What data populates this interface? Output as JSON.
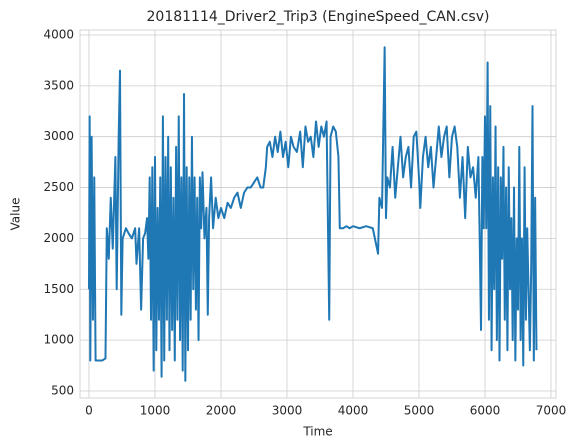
{
  "chart_data": {
    "type": "line",
    "title": "20181114_Driver2_Trip3 (EngineSpeed_CAN.csv)",
    "xlabel": "Time",
    "ylabel": "Value",
    "x": [
      0,
      10,
      20,
      40,
      60,
      80,
      100,
      150,
      200,
      250,
      270,
      300,
      330,
      360,
      400,
      420,
      450,
      470,
      490,
      510,
      560,
      600,
      650,
      700,
      720,
      760,
      790,
      820,
      850,
      880,
      900,
      920,
      940,
      960,
      980,
      1000,
      1020,
      1040,
      1060,
      1080,
      1100,
      1120,
      1140,
      1160,
      1180,
      1200,
      1220,
      1240,
      1260,
      1280,
      1300,
      1320,
      1340,
      1360,
      1380,
      1400,
      1420,
      1440,
      1460,
      1480,
      1500,
      1520,
      1540,
      1560,
      1580,
      1600,
      1620,
      1640,
      1660,
      1680,
      1700,
      1720,
      1750,
      1780,
      1800,
      1820,
      1850,
      1880,
      1920,
      1960,
      2000,
      2050,
      2100,
      2150,
      2200,
      2250,
      2300,
      2350,
      2400,
      2450,
      2500,
      2550,
      2600,
      2640,
      2680,
      2700,
      2740,
      2780,
      2820,
      2860,
      2900,
      2940,
      2980,
      3020,
      3060,
      3100,
      3150,
      3200,
      3240,
      3280,
      3320,
      3360,
      3400,
      3440,
      3480,
      3520,
      3560,
      3600,
      3640,
      3660,
      3700,
      3740,
      3780,
      3800,
      3850,
      3900,
      3950,
      4000,
      4100,
      4200,
      4300,
      4380,
      4400,
      4440,
      4480,
      4500,
      4520,
      4560,
      4600,
      4640,
      4680,
      4720,
      4760,
      4800,
      4840,
      4880,
      4920,
      4960,
      5000,
      5020,
      5060,
      5100,
      5140,
      5180,
      5220,
      5260,
      5300,
      5340,
      5380,
      5420,
      5460,
      5500,
      5540,
      5580,
      5620,
      5660,
      5700,
      5740,
      5780,
      5820,
      5860,
      5900,
      5920,
      5940,
      5960,
      5980,
      6000,
      6020,
      6040,
      6060,
      6080,
      6100,
      6120,
      6140,
      6160,
      6180,
      6200,
      6220,
      6240,
      6260,
      6280,
      6300,
      6320,
      6340,
      6360,
      6380,
      6400,
      6420,
      6440,
      6460,
      6480,
      6500,
      6520,
      6540,
      6560,
      6580,
      6600,
      6620,
      6640,
      6660,
      6680,
      6700,
      6720,
      6740,
      6760,
      6780
    ],
    "values": [
      1500,
      3200,
      800,
      3000,
      1200,
      2600,
      800,
      800,
      800,
      820,
      2100,
      1800,
      2400,
      1900,
      2800,
      1500,
      3000,
      3650,
      1250,
      2000,
      2100,
      2050,
      2000,
      2100,
      1750,
      2100,
      1300,
      2000,
      2050,
      2200,
      1800,
      2600,
      1200,
      2700,
      700,
      2800,
      900,
      2300,
      1200,
      2600,
      640,
      3200,
      800,
      2800,
      1200,
      3000,
      900,
      2700,
      1100,
      2400,
      800,
      2900,
      1200,
      3200,
      1000,
      2600,
      700,
      3420,
      600,
      2700,
      900,
      2600,
      1200,
      3000,
      1500,
      2600,
      1300,
      2400,
      1000,
      2600,
      2100,
      2650,
      2000,
      2300,
      1250,
      2200,
      2600,
      2100,
      2400,
      2200,
      2300,
      2200,
      2350,
      2300,
      2400,
      2450,
      2300,
      2450,
      2500,
      2500,
      2550,
      2600,
      2500,
      2500,
      2700,
      2900,
      2950,
      2800,
      3000,
      2850,
      3050,
      2800,
      2950,
      2700,
      3000,
      2900,
      2850,
      3050,
      2700,
      3100,
      2950,
      3000,
      2800,
      3150,
      2900,
      3100,
      3000,
      3150,
      1200,
      3000,
      3100,
      3050,
      2800,
      2100,
      2100,
      2120,
      2100,
      2120,
      2100,
      2120,
      2100,
      1850,
      2400,
      2300,
      3880,
      2200,
      2600,
      2500,
      2900,
      2400,
      2700,
      3000,
      2600,
      2800,
      2900,
      2500,
      3000,
      3050,
      2600,
      2300,
      2800,
      3000,
      2700,
      2900,
      2500,
      2800,
      3100,
      2800,
      3000,
      3100,
      2600,
      3000,
      3100,
      2900,
      2400,
      2800,
      2200,
      2900,
      2600,
      2700,
      2400,
      2800,
      2000,
      1100,
      2800,
      2100,
      3200,
      2100,
      3730,
      1200,
      3300,
      900,
      2600,
      1500,
      3100,
      1000,
      2700,
      800,
      2600,
      1800,
      2900,
      1200,
      2500,
      900,
      2700,
      1500,
      2200,
      1000,
      2500,
      800,
      2000,
      1300,
      2900,
      1000,
      2000,
      750,
      2700,
      1200,
      2100,
      1500,
      900,
      1700,
      3300,
      800,
      2400,
      900
    ],
    "color": "#1f77b4",
    "xlim": [
      -136,
      7076
    ],
    "ylim": [
      431,
      4049
    ],
    "xticks": [
      0,
      1000,
      2000,
      3000,
      4000,
      5000,
      6000,
      7000
    ],
    "yticks": [
      500,
      1000,
      1500,
      2000,
      2500,
      3000,
      3500,
      4000
    ],
    "grid": true
  }
}
